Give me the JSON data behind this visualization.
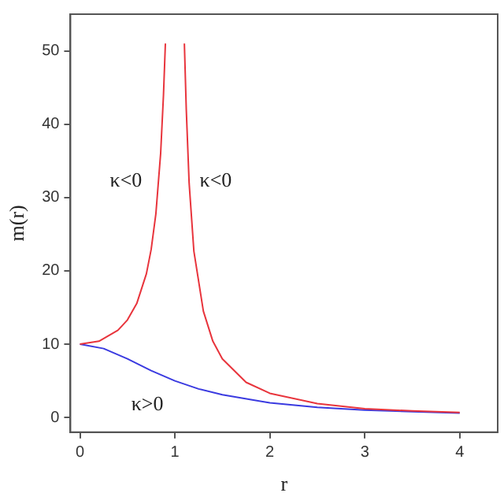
{
  "chart_data": {
    "type": "line",
    "xlabel": "r",
    "ylabel": "m(r)",
    "xlim": [
      -0.1,
      4.4
    ],
    "ylim": [
      -2,
      55
    ],
    "xticks": [
      0,
      1,
      2,
      3,
      4
    ],
    "yticks": [
      0,
      10,
      20,
      30,
      40,
      50
    ],
    "grid": false,
    "legend": false,
    "marker": "none",
    "line_style": "solid",
    "series": [
      {
        "color": "#e8343c",
        "x": [
          0,
          0.2,
          0.4,
          0.5,
          0.6,
          0.7,
          0.75,
          0.8,
          0.85,
          0.88,
          0.9,
          1,
          1.1,
          1.12,
          1.15,
          1.2,
          1.3,
          1.4,
          1.5,
          1.75,
          2,
          2.5,
          3,
          3.5,
          4
        ],
        "values": [
          10,
          10.4,
          11.9,
          13.3,
          15.6,
          19.6,
          22.9,
          27.8,
          36,
          44,
          51,
          null,
          51,
          42,
          32,
          22.7,
          14.5,
          10.4,
          8,
          4.8,
          3.3,
          1.9,
          1.2,
          0.9,
          0.7
        ]
      },
      {
        "color": "#3a3ae0",
        "x": [
          0,
          0.25,
          0.5,
          0.75,
          1,
          1.25,
          1.5,
          2,
          2.5,
          3,
          3.5,
          4
        ],
        "values": [
          10,
          9.4,
          8,
          6.4,
          5,
          3.9,
          3.1,
          2,
          1.4,
          1,
          0.8,
          0.6
        ]
      }
    ],
    "annotations": [
      "κ<0",
      "κ<0",
      "κ>0"
    ]
  }
}
